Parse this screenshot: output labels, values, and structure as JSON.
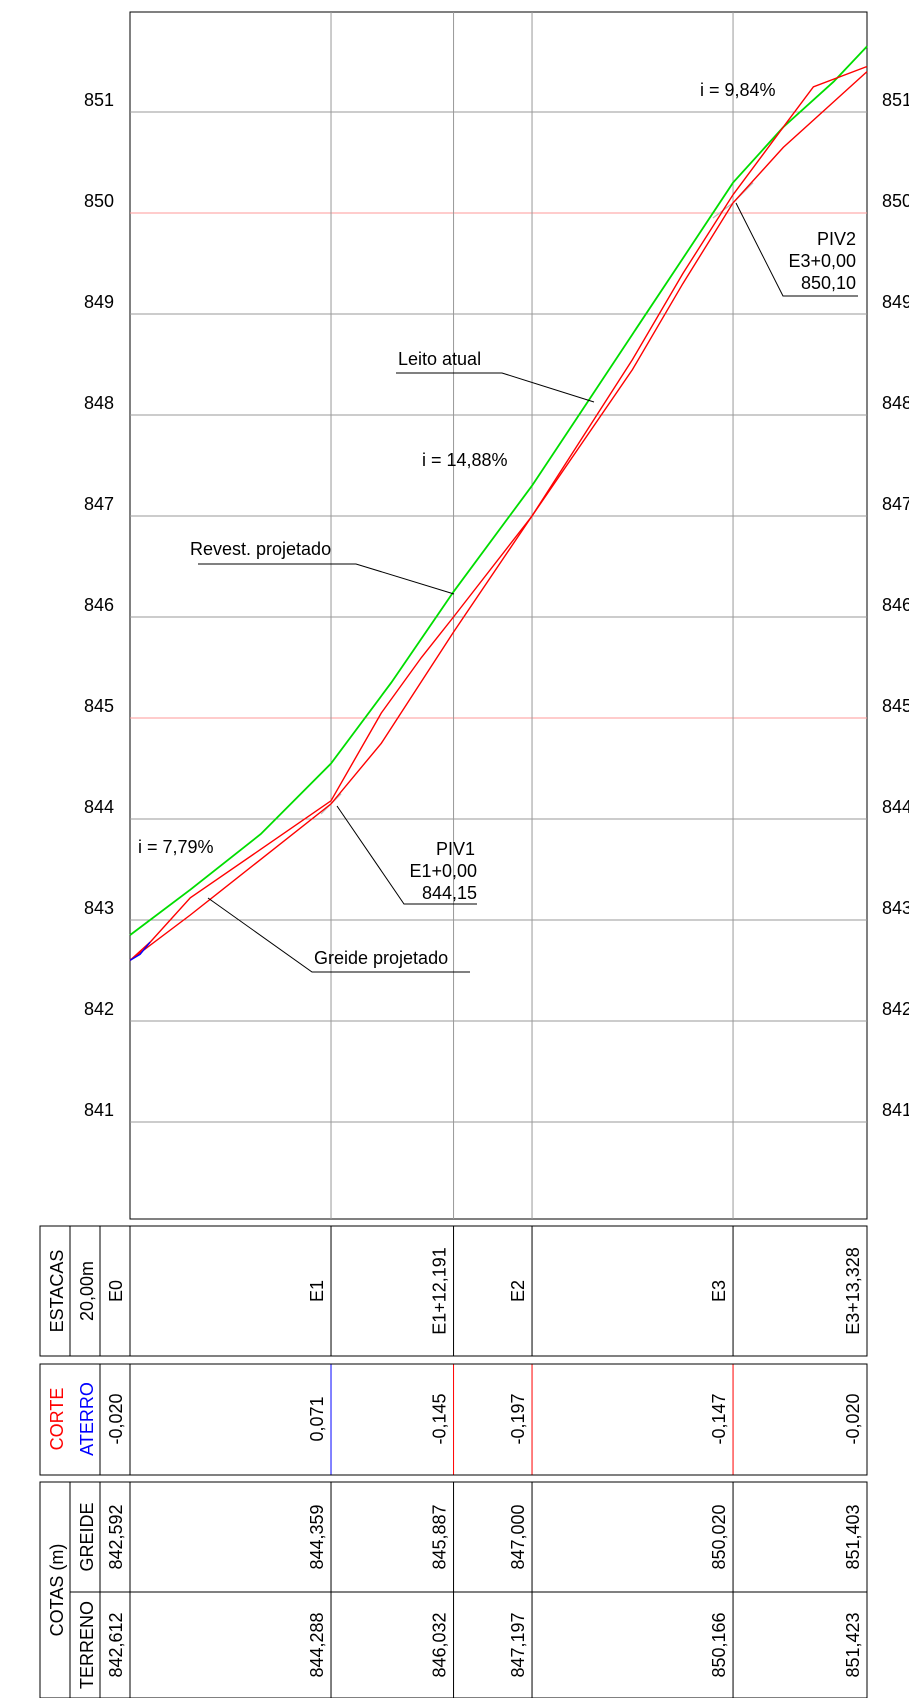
{
  "chart_data": {
    "type": "line",
    "ylim": [
      840,
      852
    ],
    "y_ticks": [
      "851",
      "850",
      "849",
      "848",
      "847",
      "846",
      "845",
      "844",
      "843",
      "842",
      "841"
    ],
    "x_range_m": [
      0,
      73.328
    ],
    "stations": [
      {
        "label": "E0",
        "pos": 0,
        "diff": "-0,020",
        "diff_type": "corte",
        "greide": "842,592",
        "terreno": "842,612"
      },
      {
        "label": "E1",
        "pos": 20,
        "diff": "0,071",
        "diff_type": "aterro",
        "greide": "844,359",
        "terreno": "844,288"
      },
      {
        "label": "E1+12,191",
        "pos": 32.191,
        "diff": "-0,145",
        "diff_type": "corte",
        "greide": "845,887",
        "terreno": "846,032"
      },
      {
        "label": "E2",
        "pos": 40,
        "diff": "-0,197",
        "diff_type": "corte",
        "greide": "847,000",
        "terreno": "847,197"
      },
      {
        "label": "E3",
        "pos": 60,
        "diff": "-0,147",
        "diff_type": "corte",
        "greide": "850,020",
        "terreno": "850,166"
      },
      {
        "label": "E3+13,328",
        "pos": 73.328,
        "diff": "-0,020",
        "diff_type": "corte",
        "greide": "851,403",
        "terreno": "851,423"
      }
    ],
    "series": [
      {
        "name": "Leito atual",
        "color": "#00dd00",
        "role": "terreno",
        "x": [
          0,
          6,
          13,
          20,
          26,
          32.191,
          40,
          45,
          50,
          55,
          60,
          65,
          70,
          73.328
        ],
        "y": [
          842.85,
          843.3,
          843.85,
          844.55,
          845.35,
          846.25,
          847.3,
          848.05,
          848.8,
          849.55,
          850.3,
          850.85,
          851.3,
          851.65
        ]
      },
      {
        "name": "Revest. projetado",
        "color": "#ff0000",
        "role": "upper",
        "x": [
          0,
          2,
          6,
          13,
          20,
          25,
          29,
          32.191,
          40,
          50,
          55,
          60,
          65,
          68,
          73.328
        ],
        "y": [
          842.6,
          842.78,
          843.22,
          843.7,
          844.18,
          845.05,
          845.6,
          846.0,
          847.0,
          848.55,
          849.4,
          850.18,
          850.85,
          851.25,
          851.45
        ]
      },
      {
        "name": "Greide projetado",
        "color": "#ff0000",
        "role": "lower",
        "x": [
          0,
          6,
          13,
          20,
          25,
          32.191,
          40,
          50,
          55,
          60,
          65,
          70,
          73.328
        ],
        "y": [
          842.6,
          843.05,
          843.6,
          844.15,
          844.75,
          845.85,
          847.0,
          848.45,
          849.3,
          850.1,
          850.65,
          851.1,
          851.4
        ]
      }
    ],
    "aterro_segment": {
      "color": "#0000ff",
      "x": [
        0,
        1,
        2
      ],
      "y": [
        842.6,
        842.66,
        842.78
      ]
    },
    "gray_segments": [
      {
        "x": [
          19,
          20,
          21
        ],
        "y": [
          844.05,
          844.15,
          844.25
        ]
      },
      {
        "x": [
          58,
          60,
          62
        ],
        "y": [
          849.95,
          850.1,
          850.3
        ]
      }
    ],
    "grade_labels": [
      "i = 9,84%",
      "i = 14,88%",
      "i = 7,79%"
    ],
    "callouts": {
      "leito": "Leito atual",
      "revest": "Revest. projetado",
      "greide": "Greide projetado",
      "piv1": [
        "PIV1",
        "E1+0,00",
        "844,15"
      ],
      "piv2": [
        "PIV2",
        "E3+0,00",
        "850,10"
      ]
    }
  },
  "table": {
    "estacas_label": "ESTACAS",
    "estacas_sub": "20,00m",
    "corte_label": "CORTE",
    "aterro_label": "ATERRO",
    "cotas_label": "COTAS (m)",
    "greide_label": "GREIDE",
    "terreno_label": "TERRENO"
  },
  "colors": {
    "terreno": "#00dd00",
    "projeto": "#ff0000",
    "aterro": "#0000ff",
    "grid": "#999999",
    "grid_major": "#ff9999"
  }
}
